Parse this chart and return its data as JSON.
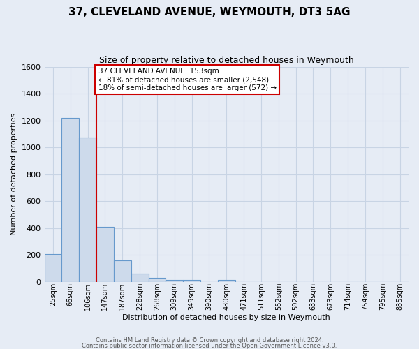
{
  "title": "37, CLEVELAND AVENUE, WEYMOUTH, DT3 5AG",
  "subtitle": "Size of property relative to detached houses in Weymouth",
  "xlabel": "Distribution of detached houses by size in Weymouth",
  "ylabel": "Number of detached properties",
  "bin_labels": [
    "25sqm",
    "66sqm",
    "106sqm",
    "147sqm",
    "187sqm",
    "228sqm",
    "268sqm",
    "309sqm",
    "349sqm",
    "390sqm",
    "430sqm",
    "471sqm",
    "511sqm",
    "552sqm",
    "592sqm",
    "633sqm",
    "673sqm",
    "714sqm",
    "754sqm",
    "795sqm",
    "835sqm"
  ],
  "bar_heights": [
    205,
    1220,
    1075,
    410,
    160,
    58,
    30,
    13,
    13,
    0,
    13,
    0,
    0,
    0,
    0,
    0,
    0,
    0,
    0,
    0,
    0
  ],
  "bar_color": "#cddaeb",
  "bar_edge_color": "#6699cc",
  "vline_index": 3,
  "vline_color": "#cc0000",
  "ylim": [
    0,
    1600
  ],
  "yticks": [
    0,
    200,
    400,
    600,
    800,
    1000,
    1200,
    1400,
    1600
  ],
  "annotation_box_text": "37 CLEVELAND AVENUE: 153sqm\n← 81% of detached houses are smaller (2,548)\n18% of semi-detached houses are larger (572) →",
  "annotation_box_color": "#ffffff",
  "annotation_box_edge_color": "#cc0000",
  "grid_color": "#c8d4e4",
  "background_color": "#e6ecf5",
  "footer_line1": "Contains HM Land Registry data © Crown copyright and database right 2024.",
  "footer_line2": "Contains public sector information licensed under the Open Government Licence v3.0."
}
